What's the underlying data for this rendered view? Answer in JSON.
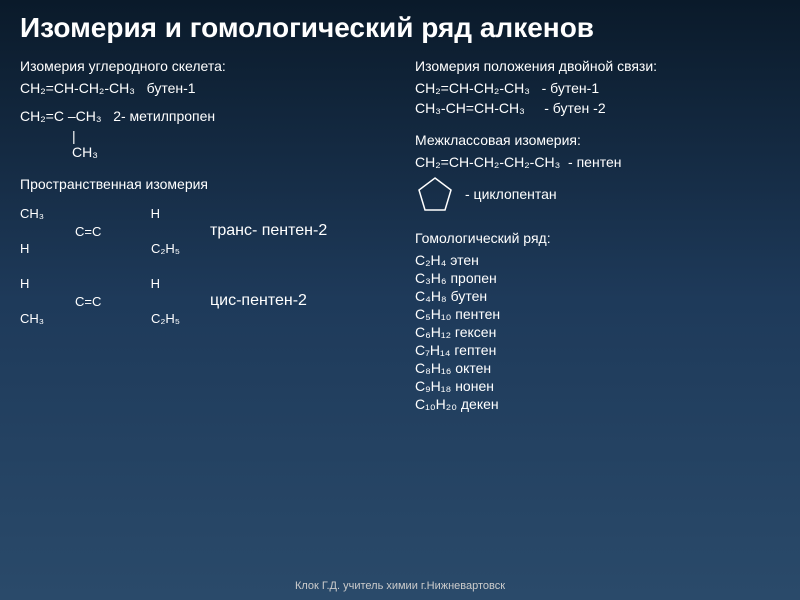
{
  "title": "Изомерия и гомологический ряд алкенов",
  "carbon_skeleton": {
    "heading": "Изомерия углеродного скелета:",
    "line1": "CH₂=CH-CH₂-CH₃   бутен-1",
    "line2": "CH₂=C –CH₃   2- метилпропен",
    "branch_line": "|",
    "branch": "CH₃"
  },
  "double_bond": {
    "heading": "Изомерия положения двойной связи:",
    "line1": "CH₂=CH-CH₂-CH₃   - бутен-1",
    "line2": "CH₃-CH=CH-CH₃     - бутен -2"
  },
  "interclass": {
    "heading": "Межклассовая изомерия:",
    "line1": "CH₂=CH-CH₂-CH₂-CH₃  - пентен",
    "cyclo_label": "-    циклопентан"
  },
  "spatial": {
    "heading": "Пространственная изомерия",
    "trans": {
      "tl": "CH₃",
      "tr": "H",
      "center": "C=C",
      "bl": "H",
      "br": "C₂H₅",
      "label": "транс- пентен-2"
    },
    "cis": {
      "tl": "H",
      "tr": "H",
      "center": "C=C",
      "bl": "CH₃",
      "br": "C₂H₅",
      "label": "цис-пентен-2"
    }
  },
  "homologous": {
    "heading": "Гомологический ряд:",
    "rows": [
      {
        "f": "C₂H₄",
        "n": "этен"
      },
      {
        "f": "C₃H₆",
        "n": "пропен"
      },
      {
        "f": "C₄H₈",
        "n": "бутен"
      },
      {
        "f": "C₅H₁₀",
        "n": "пентен"
      },
      {
        "f": "C₆H₁₂",
        "n": "гексен"
      },
      {
        "f": "C₇H₁₄",
        "n": "гептен"
      },
      {
        "f": "C₈H₁₆",
        "n": "октен"
      },
      {
        "f": "C₉H₁₈",
        "n": "нонен"
      },
      {
        "f": "C₁₀H₂₀",
        "n": "декен"
      }
    ]
  },
  "footer": "Клок Г.Д. учитель химии  г.Нижневартовск",
  "style": {
    "bg_gradient": [
      "#0a1a2a",
      "#1e3a5a",
      "#2a4a6a"
    ],
    "text_color": "#ffffff",
    "title_fontsize": 28,
    "body_fontsize": 14,
    "pentagon_stroke": "#ffffff",
    "pentagon_size": 40
  }
}
